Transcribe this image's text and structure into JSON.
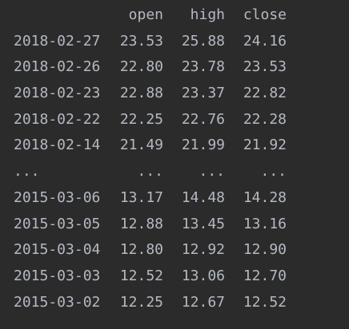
{
  "columns": [
    "open",
    "high",
    "close"
  ],
  "rows": [
    {
      "index": "2018-02-27",
      "open": "23.53",
      "high": "25.88",
      "close": "24.16"
    },
    {
      "index": "2018-02-26",
      "open": "22.80",
      "high": "23.78",
      "close": "23.53"
    },
    {
      "index": "2018-02-23",
      "open": "22.88",
      "high": "23.37",
      "close": "22.82"
    },
    {
      "index": "2018-02-22",
      "open": "22.25",
      "high": "22.76",
      "close": "22.28"
    },
    {
      "index": "2018-02-14",
      "open": "21.49",
      "high": "21.99",
      "close": "21.92"
    },
    {
      "index": "...",
      "open": "...",
      "high": "...",
      "close": "..."
    },
    {
      "index": "2015-03-06",
      "open": "13.17",
      "high": "14.48",
      "close": "14.28"
    },
    {
      "index": "2015-03-05",
      "open": "12.88",
      "high": "13.45",
      "close": "13.16"
    },
    {
      "index": "2015-03-04",
      "open": "12.80",
      "high": "12.92",
      "close": "12.90"
    },
    {
      "index": "2015-03-03",
      "open": "12.52",
      "high": "13.06",
      "close": "12.70"
    },
    {
      "index": "2015-03-02",
      "open": "12.25",
      "high": "12.67",
      "close": "12.52"
    }
  ]
}
